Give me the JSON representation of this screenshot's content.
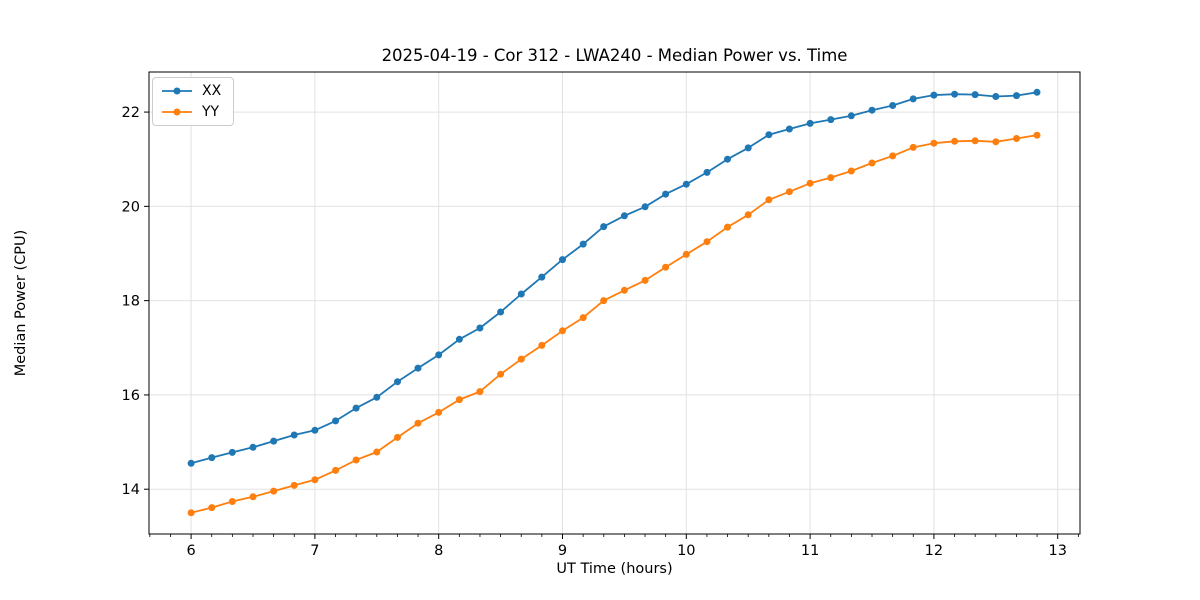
{
  "chart_data": {
    "type": "line",
    "title": "2025-04-19 - Cor 312 - LWA240 - Median Power vs. Time",
    "xlabel": "UT Time (hours)",
    "ylabel": "Median Power (CPU)",
    "xlim": [
      5.66,
      13.18
    ],
    "ylim": [
      13.05,
      22.85
    ],
    "xticks": [
      6,
      7,
      8,
      9,
      10,
      11,
      12,
      13
    ],
    "yticks": [
      14,
      16,
      18,
      20,
      22
    ],
    "x_minor_divisions": 6,
    "grid": true,
    "grid_color": "#e2e2e2",
    "axis_color": "#000000",
    "background_color": "#ffffff",
    "legend_position": "upper left",
    "marker": "circle",
    "marker_radius": 3.5,
    "line_width": 1.8,
    "x": [
      6.0,
      6.167,
      6.333,
      6.5,
      6.667,
      6.833,
      7.0,
      7.167,
      7.333,
      7.5,
      7.667,
      7.833,
      8.0,
      8.167,
      8.333,
      8.5,
      8.667,
      8.833,
      9.0,
      9.167,
      9.333,
      9.5,
      9.667,
      9.833,
      10.0,
      10.167,
      10.333,
      10.5,
      10.667,
      10.833,
      11.0,
      11.167,
      11.333,
      11.5,
      11.667,
      11.833,
      12.0,
      12.167,
      12.333,
      12.5,
      12.667,
      12.833
    ],
    "series": [
      {
        "name": "XX",
        "color": "#1f77b4",
        "values": [
          14.55,
          14.67,
          14.78,
          14.89,
          15.02,
          15.15,
          15.25,
          15.45,
          15.72,
          15.95,
          16.28,
          16.57,
          16.85,
          17.18,
          17.42,
          17.76,
          18.14,
          18.5,
          18.87,
          19.2,
          19.57,
          19.8,
          19.99,
          20.26,
          20.47,
          20.72,
          21.0,
          21.24,
          21.52,
          21.64,
          21.76,
          21.84,
          21.92,
          22.04,
          22.14,
          22.28,
          22.36,
          22.38,
          22.37,
          22.33,
          22.35,
          22.42
        ]
      },
      {
        "name": "YY",
        "color": "#ff7f0e",
        "values": [
          13.5,
          13.61,
          13.74,
          13.84,
          13.96,
          14.08,
          14.2,
          14.4,
          14.62,
          14.79,
          15.1,
          15.4,
          15.63,
          15.9,
          16.07,
          16.44,
          16.76,
          17.05,
          17.36,
          17.64,
          18.0,
          18.22,
          18.43,
          18.71,
          18.98,
          19.25,
          19.56,
          19.82,
          20.14,
          20.31,
          20.49,
          20.61,
          20.75,
          20.92,
          21.07,
          21.25,
          21.34,
          21.38,
          21.39,
          21.37,
          21.44,
          21.51
        ]
      }
    ]
  }
}
